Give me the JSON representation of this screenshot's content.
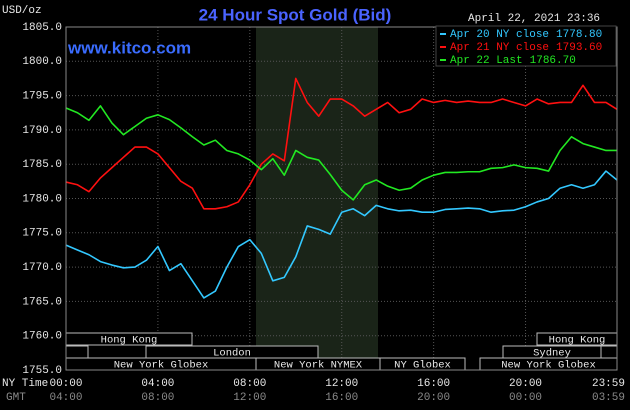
{
  "chart_data": {
    "type": "line",
    "title": "24 Hour Spot Gold (Bid)",
    "unit_label": "USD/oz",
    "site": "www.kitco.com",
    "timestamp": "April 22, 2021 23:36",
    "x_axis_label": "NY Time",
    "x2_axis_label": "GMT",
    "xlim": [
      0,
      23.98
    ],
    "xticks": [
      {
        "value": 0,
        "label": "00:00"
      },
      {
        "value": 4,
        "label": "04:00"
      },
      {
        "value": 8,
        "label": "08:00"
      },
      {
        "value": 12,
        "label": "12:00"
      },
      {
        "value": 16,
        "label": "16:00"
      },
      {
        "value": 20,
        "label": "20:00"
      },
      {
        "value": 23.98,
        "label": "23:59"
      }
    ],
    "x2ticks": [
      {
        "value": 0,
        "label": "04:00"
      },
      {
        "value": 4,
        "label": "08:00"
      },
      {
        "value": 8,
        "label": "12:00"
      },
      {
        "value": 12,
        "label": "16:00"
      },
      {
        "value": 16,
        "label": "20:00"
      },
      {
        "value": 20,
        "label": "00:00"
      },
      {
        "value": 23.98,
        "label": "03:59"
      }
    ],
    "ylim": [
      1755,
      1805
    ],
    "yticks": [
      {
        "value": 1755,
        "label": "1755.0"
      },
      {
        "value": 1760,
        "label": "1760.0"
      },
      {
        "value": 1765,
        "label": "1765.0"
      },
      {
        "value": 1770,
        "label": "1770.0"
      },
      {
        "value": 1775,
        "label": "1775.0"
      },
      {
        "value": 1780,
        "label": "1780.0"
      },
      {
        "value": 1785,
        "label": "1785.0"
      },
      {
        "value": 1790,
        "label": "1790.0"
      },
      {
        "value": 1795,
        "label": "1795.0"
      },
      {
        "value": 1800,
        "label": "1800.0"
      },
      {
        "value": 1805,
        "label": "1805.0"
      }
    ],
    "grid": true,
    "legend": "top-right",
    "x": [
      0,
      0.5,
      1,
      1.5,
      2,
      2.5,
      3,
      3.5,
      4,
      4.5,
      5,
      5.5,
      6,
      6.5,
      7,
      7.5,
      8,
      8.5,
      9,
      9.5,
      10,
      10.5,
      11,
      11.5,
      12,
      12.5,
      13,
      13.5,
      14,
      14.5,
      15,
      15.5,
      16,
      16.5,
      17,
      17.5,
      18,
      18.5,
      19,
      19.5,
      20,
      20.5,
      21,
      21.5,
      22,
      22.5,
      23,
      23.5,
      23.98
    ],
    "series": [
      {
        "name": "Apr 20 NY close",
        "close": {
          "value": 1778.8,
          "label": "1778.80"
        },
        "color": "#33c8ff",
        "values": [
          1773.2,
          1772.5,
          1771.8,
          1770.8,
          1770.3,
          1769.9,
          1770.0,
          1771.0,
          1773.0,
          1769.5,
          1770.5,
          1768.0,
          1765.5,
          1766.5,
          1770.0,
          1773.0,
          1774.0,
          1772.0,
          1768.0,
          1768.5,
          1771.5,
          1776.0,
          1775.5,
          1774.8,
          1778.0,
          1778.5,
          1777.5,
          1779.0,
          1778.5,
          1778.2,
          1778.3,
          1778.0,
          1778.0,
          1778.4,
          1778.5,
          1778.6,
          1778.5,
          1778.0,
          1778.2,
          1778.3,
          1778.8,
          1779.5,
          1780.0,
          1781.5,
          1782.0,
          1781.5,
          1782.0,
          1784.0,
          1782.7
        ]
      },
      {
        "name": "Apr 21 NY close",
        "close": {
          "value": 1793.6,
          "label": "1793.60"
        },
        "color": "#ff1010",
        "values": [
          1782.4,
          1782.0,
          1781.0,
          1783.0,
          1784.5,
          1786.0,
          1787.5,
          1787.5,
          1786.5,
          1784.5,
          1782.5,
          1781.5,
          1778.5,
          1778.5,
          1778.8,
          1779.5,
          1782.0,
          1785.0,
          1786.5,
          1785.5,
          1797.5,
          1794.0,
          1792.0,
          1794.5,
          1794.5,
          1793.5,
          1792.0,
          1793.0,
          1794.0,
          1792.5,
          1793.0,
          1794.5,
          1794.0,
          1794.3,
          1794.0,
          1794.2,
          1794.0,
          1794.0,
          1794.5,
          1794.0,
          1793.5,
          1794.5,
          1793.8,
          1794.0,
          1794.0,
          1796.5,
          1794.0,
          1794.0,
          1793.0
        ]
      },
      {
        "name": "Apr 22 Last",
        "close": {
          "value": 1786.7,
          "label": "1786.70"
        },
        "color": "#22e822",
        "values": [
          1793.2,
          1792.5,
          1791.4,
          1793.5,
          1791.0,
          1789.3,
          1790.5,
          1791.7,
          1792.2,
          1791.5,
          1790.3,
          1789.0,
          1787.8,
          1788.5,
          1787.0,
          1786.5,
          1785.6,
          1784.2,
          1785.8,
          1783.4,
          1787.0,
          1786.0,
          1785.6,
          1783.5,
          1781.2,
          1779.8,
          1782.0,
          1782.7,
          1781.8,
          1781.2,
          1781.5,
          1782.7,
          1783.4,
          1783.8,
          1783.8,
          1783.9,
          1783.9,
          1784.4,
          1784.5,
          1784.9,
          1784.5,
          1784.4,
          1784.0,
          1787.0,
          1789.0,
          1788.0,
          1787.5,
          1787.0,
          1787.0
        ]
      }
    ],
    "sessions": [
      "Hong Kong",
      "Hong Kong",
      "London",
      "Sydney",
      "New York Globex",
      "New York NYMEX",
      "NY Globex",
      "New York Globex"
    ]
  }
}
